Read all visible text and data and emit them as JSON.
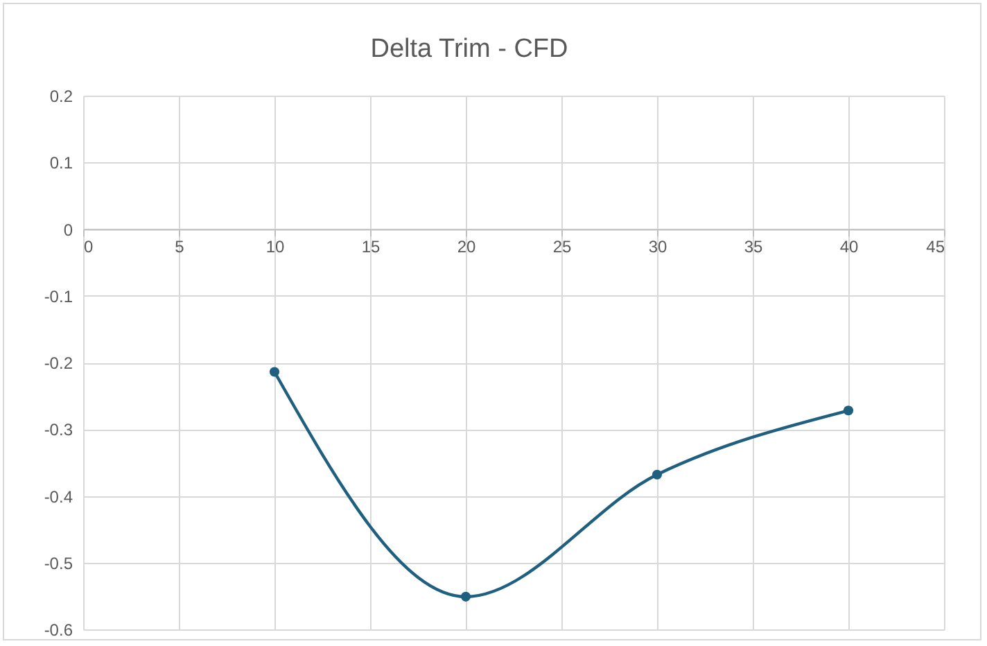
{
  "chart_data": {
    "type": "line",
    "title": "Delta Trim - CFD",
    "x": [
      10,
      20,
      30,
      40
    ],
    "series": [
      {
        "color": "#1f5f7f",
        "values": [
          -0.214,
          -0.551,
          -0.368,
          -0.272
        ]
      }
    ],
    "xlim": [
      0,
      45
    ],
    "xticks": [
      0,
      5,
      10,
      15,
      20,
      25,
      30,
      35,
      40,
      45
    ],
    "ylim": [
      -0.6,
      0.2
    ],
    "yticks": [
      -0.6,
      -0.5,
      -0.4,
      -0.3,
      -0.2,
      -0.1,
      0,
      0.1,
      0.2
    ],
    "grid": true,
    "marker": "circle",
    "line_style": "solid"
  }
}
